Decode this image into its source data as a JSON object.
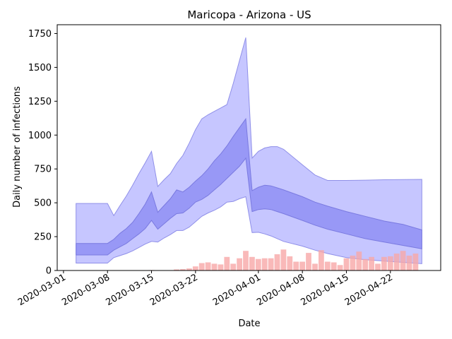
{
  "chart_data": {
    "type": "area",
    "title": "Maricopa - Arizona - US",
    "xlabel": "Date",
    "ylabel": "Daily number of infections",
    "x_ticks": [
      "2020-03-01",
      "2020-03-08",
      "2020-03-15",
      "2020-03-22",
      "2020-04-01",
      "2020-04-08",
      "2020-04-15",
      "2020-04-22"
    ],
    "y_ticks": [
      0,
      250,
      500,
      750,
      1000,
      1250,
      1500,
      1750
    ],
    "xlim": [
      "2020-02-29",
      "2020-04-30"
    ],
    "ylim": [
      0,
      1815
    ],
    "grid": false,
    "colors": {
      "outer_band": "#bcbcff",
      "outer_band_edge": "#8f8fe8",
      "inner_band": "#8f8ff5",
      "inner_band_edge": "#7a7ae0",
      "bars": "#f7a8a8"
    },
    "series": [
      {
        "kind": "band",
        "x": [
          "2020-03-03",
          "2020-03-08",
          "2020-03-09",
          "2020-03-10",
          "2020-03-11",
          "2020-03-12",
          "2020-03-13",
          "2020-03-14",
          "2020-03-15",
          "2020-03-16",
          "2020-03-17",
          "2020-03-18",
          "2020-03-19",
          "2020-03-20",
          "2020-03-21",
          "2020-03-22",
          "2020-03-23",
          "2020-03-24",
          "2020-03-25",
          "2020-03-26",
          "2020-03-27",
          "2020-03-28",
          "2020-03-29",
          "2020-03-30",
          "2020-03-31",
          "2020-04-01",
          "2020-04-02",
          "2020-04-03",
          "2020-04-04",
          "2020-04-05",
          "2020-04-08",
          "2020-04-10",
          "2020-04-12",
          "2020-04-15",
          "2020-04-18",
          "2020-04-21",
          "2020-04-24",
          "2020-04-27"
        ],
        "lower": [
          55,
          55,
          95,
          110,
          125,
          145,
          170,
          195,
          215,
          210,
          240,
          265,
          295,
          295,
          320,
          360,
          400,
          425,
          445,
          470,
          505,
          510,
          530,
          545,
          280,
          282,
          270,
          255,
          235,
          215,
          180,
          150,
          125,
          95,
          80,
          70,
          60,
          50
        ],
        "upper": [
          495,
          495,
          405,
          480,
          550,
          630,
          715,
          795,
          880,
          620,
          670,
          715,
          790,
          850,
          940,
          1040,
          1120,
          1150,
          1175,
          1200,
          1225,
          1380,
          1550,
          1720,
          830,
          880,
          905,
          915,
          915,
          895,
          780,
          705,
          665,
          665,
          667,
          670,
          672,
          673
        ]
      },
      {
        "kind": "band",
        "x": [
          "2020-03-03",
          "2020-03-08",
          "2020-03-09",
          "2020-03-10",
          "2020-03-11",
          "2020-03-12",
          "2020-03-13",
          "2020-03-14",
          "2020-03-15",
          "2020-03-16",
          "2020-03-17",
          "2020-03-18",
          "2020-03-19",
          "2020-03-20",
          "2020-03-21",
          "2020-03-22",
          "2020-03-23",
          "2020-03-24",
          "2020-03-25",
          "2020-03-26",
          "2020-03-27",
          "2020-03-28",
          "2020-03-29",
          "2020-03-30",
          "2020-03-31",
          "2020-04-01",
          "2020-04-02",
          "2020-04-03",
          "2020-04-04",
          "2020-04-05",
          "2020-04-08",
          "2020-04-10",
          "2020-04-12",
          "2020-04-15",
          "2020-04-18",
          "2020-04-21",
          "2020-04-24",
          "2020-04-27"
        ],
        "lower": [
          115,
          115,
          150,
          175,
          200,
          235,
          270,
          310,
          370,
          305,
          345,
          385,
          420,
          425,
          460,
          505,
          525,
          555,
          595,
          635,
          680,
          725,
          770,
          830,
          435,
          450,
          455,
          450,
          435,
          420,
          370,
          335,
          305,
          270,
          235,
          210,
          185,
          160
        ],
        "upper": [
          200,
          200,
          230,
          275,
          310,
          355,
          420,
          490,
          580,
          430,
          480,
          530,
          595,
          580,
          615,
          660,
          700,
          750,
          810,
          860,
          920,
          990,
          1055,
          1120,
          590,
          615,
          630,
          625,
          610,
          595,
          545,
          505,
          475,
          435,
          400,
          365,
          340,
          300
        ]
      },
      {
        "kind": "bars",
        "x": [
          "2020-03-15",
          "2020-03-16",
          "2020-03-17",
          "2020-03-18",
          "2020-03-19",
          "2020-03-20",
          "2020-03-21",
          "2020-03-22",
          "2020-03-23",
          "2020-03-24",
          "2020-03-25",
          "2020-03-26",
          "2020-03-27",
          "2020-03-28",
          "2020-03-29",
          "2020-03-30",
          "2020-03-31",
          "2020-04-01",
          "2020-04-02",
          "2020-04-03",
          "2020-04-04",
          "2020-04-05",
          "2020-04-06",
          "2020-04-07",
          "2020-04-08",
          "2020-04-09",
          "2020-04-10",
          "2020-04-11",
          "2020-04-12",
          "2020-04-13",
          "2020-04-14",
          "2020-04-15",
          "2020-04-16",
          "2020-04-17",
          "2020-04-18",
          "2020-04-19",
          "2020-04-20",
          "2020-04-21",
          "2020-04-22",
          "2020-04-23",
          "2020-04-24",
          "2020-04-25",
          "2020-04-26",
          "2020-04-27"
        ],
        "values": [
          3,
          1,
          1,
          2,
          8,
          10,
          15,
          30,
          55,
          60,
          50,
          45,
          100,
          50,
          90,
          145,
          100,
          85,
          90,
          90,
          120,
          155,
          105,
          65,
          65,
          130,
          50,
          150,
          65,
          60,
          40,
          90,
          110,
          140,
          85,
          100,
          50,
          100,
          105,
          125,
          145,
          110,
          125,
          0
        ]
      }
    ]
  }
}
